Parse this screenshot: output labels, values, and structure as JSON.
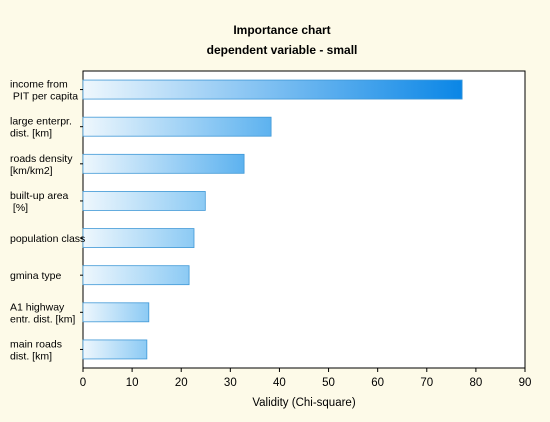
{
  "chart_data": {
    "type": "bar",
    "orientation": "horizontal",
    "title": "Importance chart",
    "subtitle": "dependent variable - small",
    "xlabel": "Validity (Chi-square)",
    "ylabel": "",
    "xlim": [
      0,
      90
    ],
    "xticks": [
      0,
      10,
      20,
      30,
      40,
      50,
      60,
      70,
      80,
      90
    ],
    "grid": false,
    "legend": "none",
    "categories": [
      [
        "income from",
        " PIT  per capita"
      ],
      [
        "large enterpr.",
        "dist. [km]"
      ],
      [
        "roads density",
        "[km/km2]"
      ],
      [
        "built-up area",
        " [%]"
      ],
      [
        "population class"
      ],
      [
        "gmina type"
      ],
      [
        "A1 highway",
        "entr. dist. [km]"
      ],
      [
        "main roads",
        "dist. [km]"
      ]
    ],
    "values": [
      77.2,
      38.3,
      32.8,
      24.9,
      22.6,
      21.6,
      13.4,
      13.0
    ],
    "colors": {
      "background": "#fdfae8",
      "plot_area": "#ffffff",
      "bar_light": "#eef7fd",
      "bar_dark": "#0a86e6",
      "bar_border": "#3f98d6",
      "axis": "#000000"
    }
  }
}
